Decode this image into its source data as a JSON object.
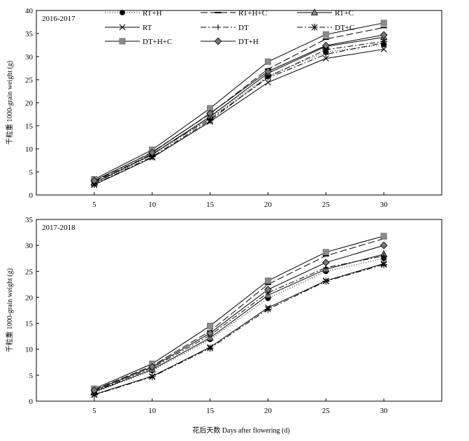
{
  "figure": {
    "ylabel": "千粒重 1000-grain weight (g)",
    "xlabel": "花后天数 Days after flowering (d)"
  },
  "legend": [
    {
      "id": "RT+H",
      "label": "RT+H",
      "stroke": "#000000",
      "dash": "1,2.5",
      "marker": "circle",
      "fill": "#000000"
    },
    {
      "id": "RT+H+C",
      "label": "RT+H+C",
      "stroke": "#000000",
      "dash": "10,4",
      "marker": "dash",
      "fill": "#000000"
    },
    {
      "id": "RT+C",
      "label": "RT+C",
      "stroke": "#000000",
      "dash": "",
      "marker": "triangle",
      "fill": "#888888"
    },
    {
      "id": "RT",
      "label": "RT",
      "stroke": "#000000",
      "dash": "",
      "marker": "x",
      "fill": "#000000"
    },
    {
      "id": "DT",
      "label": "DT",
      "stroke": "#000000",
      "dash": "8,3,2,3",
      "marker": "plus",
      "fill": "#000000"
    },
    {
      "id": "DT+C",
      "label": "DT+C",
      "stroke": "#000000",
      "dash": "8,3,2,3",
      "marker": "star",
      "fill": "#000000"
    },
    {
      "id": "DT+H+C",
      "label": "DT+H+C",
      "stroke": "#000000",
      "dash": "",
      "marker": "square",
      "fill": "#8a8a8a"
    },
    {
      "id": "DT+H",
      "label": "DT+H",
      "stroke": "#000000",
      "dash": "",
      "marker": "diamond",
      "fill": "#777777"
    }
  ],
  "chart_data": [
    {
      "type": "line",
      "title": "2016-2017",
      "x": [
        5,
        10,
        15,
        20,
        25,
        30
      ],
      "xlim": [
        0,
        35
      ],
      "ylim": [
        0,
        40
      ],
      "yticks": [
        0,
        5,
        10,
        15,
        20,
        25,
        30,
        35,
        40
      ],
      "xticks": [
        5,
        10,
        15,
        20,
        25,
        30
      ],
      "series": [
        {
          "name": "RT+H",
          "values": [
            2.5,
            8.6,
            16.8,
            25.8,
            31.0,
            32.6
          ]
        },
        {
          "name": "RT+H+C",
          "values": [
            2.9,
            9.3,
            17.6,
            27.3,
            33.8,
            36.3
          ]
        },
        {
          "name": "RT+C",
          "values": [
            2.6,
            8.8,
            17.0,
            26.4,
            32.2,
            34.2
          ]
        },
        {
          "name": "RT",
          "values": [
            2.2,
            8.1,
            15.9,
            24.4,
            29.6,
            31.6
          ]
        },
        {
          "name": "DT",
          "values": [
            2.7,
            8.9,
            16.5,
            25.4,
            30.5,
            33.0
          ]
        },
        {
          "name": "DT+C",
          "values": [
            2.3,
            8.3,
            16.2,
            25.6,
            31.5,
            33.3
          ]
        },
        {
          "name": "DT+H+C",
          "values": [
            3.4,
            9.8,
            18.8,
            28.9,
            34.8,
            37.3
          ]
        },
        {
          "name": "DT+H",
          "values": [
            3.1,
            9.2,
            17.7,
            26.8,
            32.4,
            34.7
          ]
        }
      ]
    },
    {
      "type": "line",
      "title": "2017-2018",
      "x": [
        5,
        10,
        15,
        20,
        25,
        30
      ],
      "xlim": [
        0,
        35
      ],
      "ylim": [
        0,
        35
      ],
      "yticks": [
        0,
        5,
        10,
        15,
        20,
        25,
        30,
        35
      ],
      "xticks": [
        5,
        10,
        15,
        20,
        25,
        30
      ],
      "series": [
        {
          "name": "RT+H",
          "values": [
            1.7,
            5.9,
            11.9,
            19.8,
            25.0,
            27.5
          ]
        },
        {
          "name": "RT+H+C",
          "values": [
            2.2,
            6.8,
            13.5,
            22.5,
            28.0,
            31.3
          ]
        },
        {
          "name": "RT+C",
          "values": [
            1.8,
            6.1,
            12.2,
            20.4,
            25.4,
            28.3
          ]
        },
        {
          "name": "RT",
          "values": [
            1.3,
            4.8,
            10.4,
            18.0,
            23.2,
            26.5
          ]
        },
        {
          "name": "DT",
          "values": [
            1.9,
            6.4,
            12.7,
            20.9,
            25.7,
            28.0
          ]
        },
        {
          "name": "DT+C",
          "values": [
            1.2,
            4.7,
            10.2,
            17.7,
            23.1,
            26.3
          ]
        },
        {
          "name": "DT+H+C",
          "values": [
            2.4,
            7.2,
            14.5,
            23.2,
            28.7,
            31.8
          ]
        },
        {
          "name": "DT+H",
          "values": [
            2.1,
            6.6,
            13.1,
            21.5,
            26.7,
            30.0
          ]
        }
      ]
    }
  ]
}
